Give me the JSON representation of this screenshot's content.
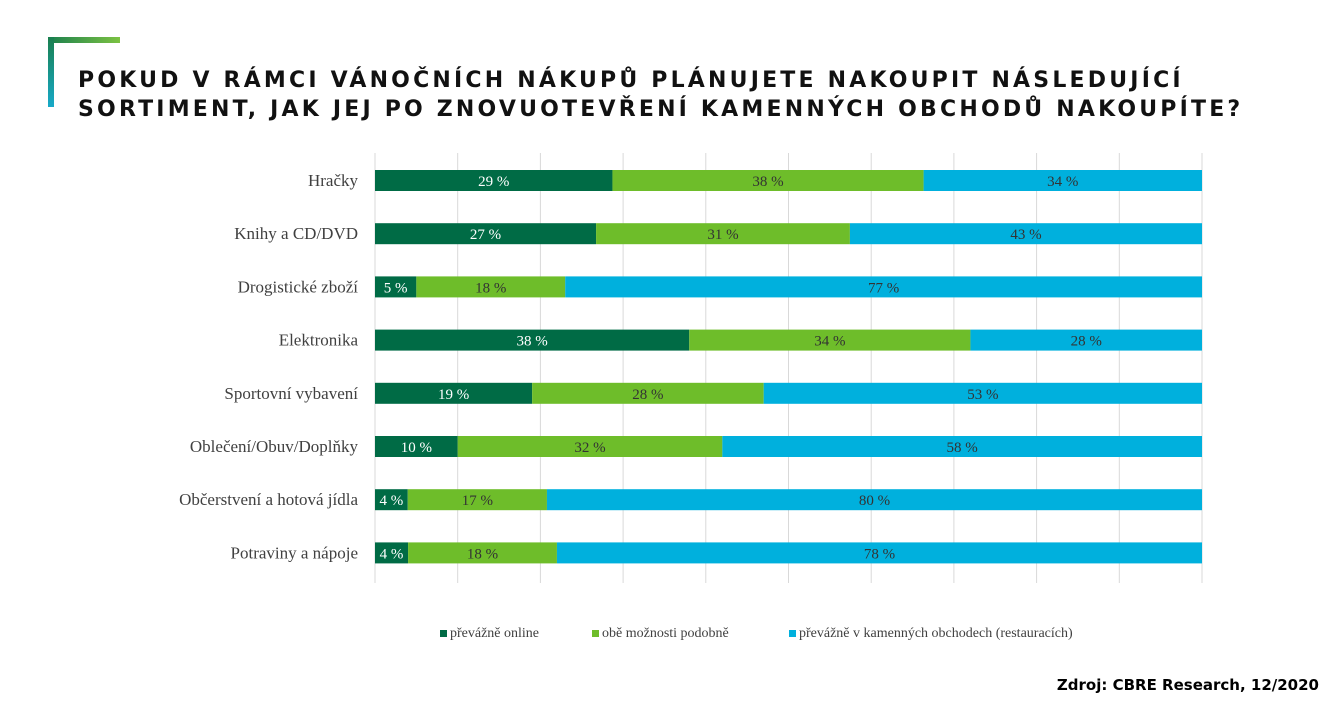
{
  "title": "POKUD V RÁMCI VÁNOČNÍCH NÁKUPŮ PLÁNUJETE NAKOUPIT NÁSLEDUJÍCÍ SORTIMENT, JAK JEJ PO ZNOVUOTEVŘENÍ KAMENNÝCH OBCHODŮ NAKOUPÍTE?",
  "source": "Zdroj: CBRE Research, 12/2020",
  "colors": {
    "accent_green": "#1a7f4e",
    "accent_lime": "#7cc242",
    "accent_cyan": "#17a9c9"
  },
  "chart_data": {
    "type": "bar",
    "orientation": "horizontal",
    "stacked": true,
    "percent_stacked": true,
    "categories": [
      "Hračky",
      "Knihy a CD/DVD",
      "Drogistické zboží",
      "Elektronika",
      "Sportovní vybavení",
      "Oblečení/Obuv/Doplňky",
      "Občerstvení a hotová jídla",
      "Potraviny a nápoje"
    ],
    "series": [
      {
        "name": "převážně online",
        "color": "#006b45",
        "values": [
          29,
          27,
          5,
          38,
          19,
          10,
          4,
          4
        ]
      },
      {
        "name": "obě možnosti podobně",
        "color": "#6ebd2a",
        "values": [
          38,
          31,
          18,
          34,
          28,
          32,
          17,
          18
        ]
      },
      {
        "name": "převážně v kamenných obchodech (restauracích)",
        "color": "#00b0dd",
        "values": [
          34,
          43,
          77,
          28,
          53,
          58,
          80,
          78
        ]
      }
    ],
    "data_labels": [
      [
        "29 %",
        "38 %",
        "34 %"
      ],
      [
        "27 %",
        "31 %",
        "43 %"
      ],
      [
        "5 %",
        "18 %",
        "77 %"
      ],
      [
        "38 %",
        "34 %",
        "28 %"
      ],
      [
        "19 %",
        "28 %",
        "53 %"
      ],
      [
        "10 %",
        "32 %",
        "58 %"
      ],
      [
        "4 %",
        "17 %",
        "80 %"
      ],
      [
        "4 %",
        "18 %",
        "78 %"
      ]
    ],
    "label_colors": [
      "#ffffff",
      "#333333",
      "#333333"
    ],
    "grid": true,
    "legend_position": "bottom"
  }
}
